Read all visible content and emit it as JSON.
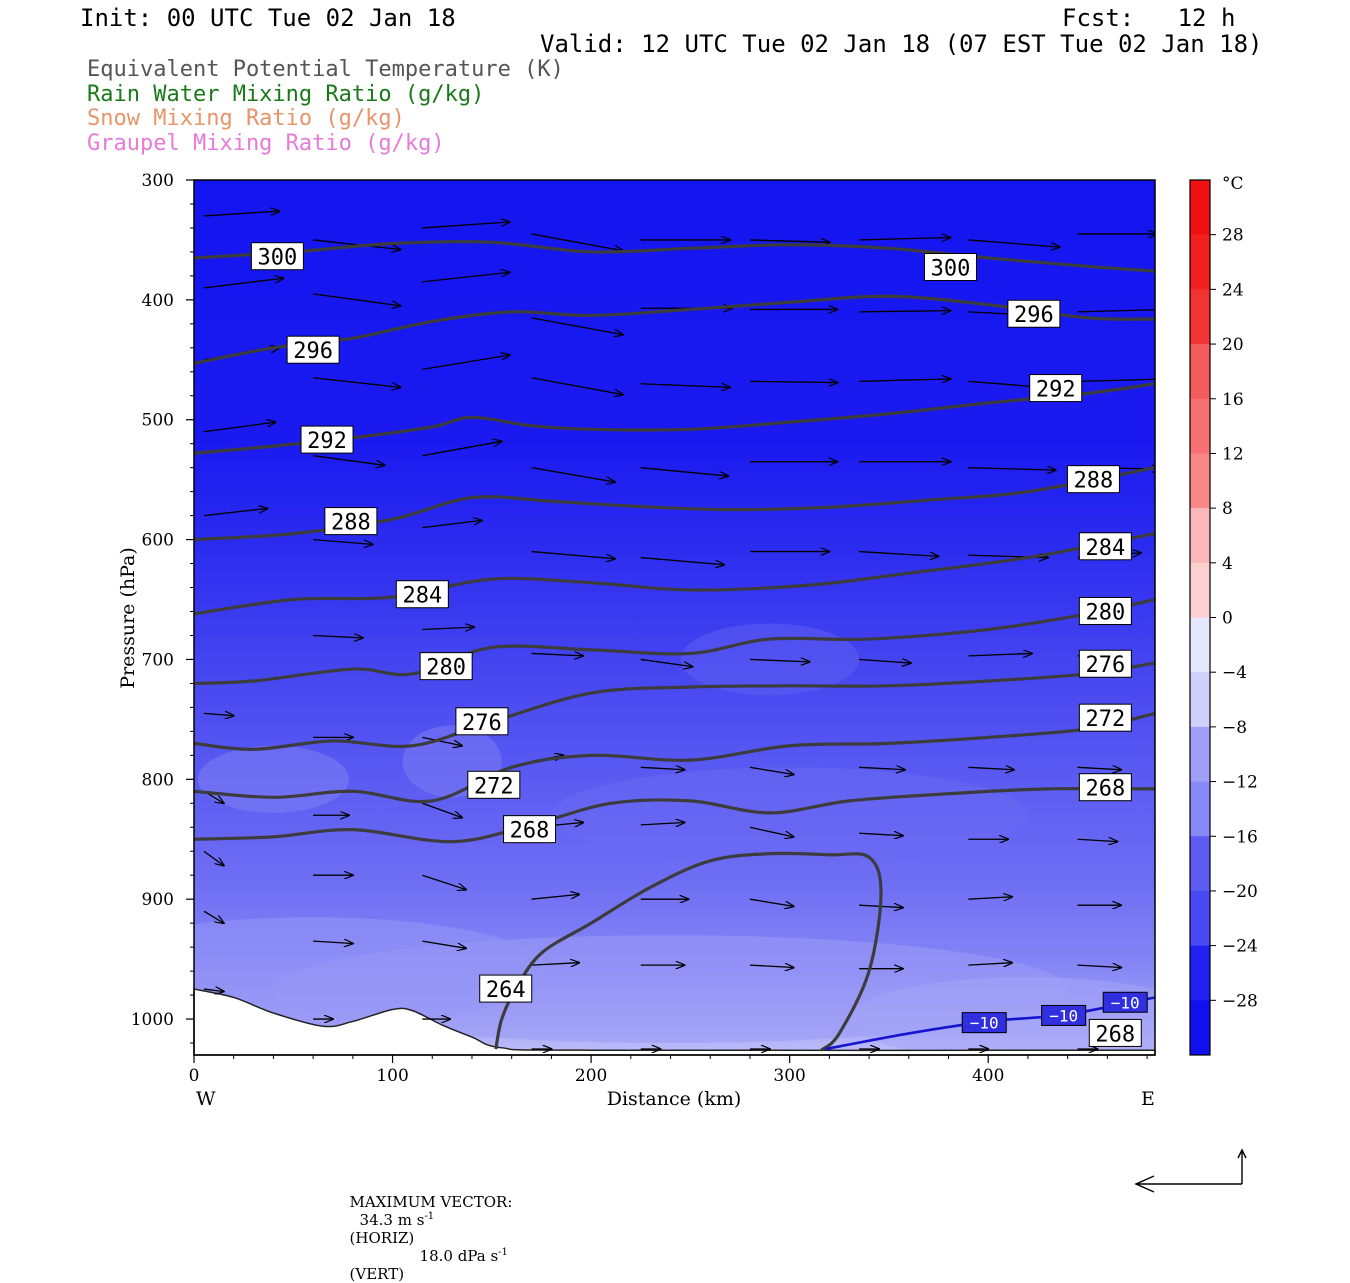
{
  "header": {
    "init": "Init: 00 UTC Tue 02 Jan 18",
    "fcst": "Fcst:   12 h",
    "valid": "Valid: 12 UTC Tue 02 Jan 18 (07 EST Tue 02 Jan 18)"
  },
  "legend": [
    {
      "text": "Equivalent Potential Temperature (K)",
      "color": "#555555"
    },
    {
      "text": "Rain Water Mixing Ratio (g/kg)",
      "color": "#1a7a1a"
    },
    {
      "text": "Snow Mixing Ratio (g/kg)",
      "color": "#e8946a"
    },
    {
      "text": "Graupel Mixing Ratio (g/kg)",
      "color": "#e87ad8"
    }
  ],
  "chart_data": {
    "type": "cross-section",
    "xlabel": "Distance (km)",
    "ylabel": "Pressure (hPa)",
    "x_ticks": [
      0,
      100,
      200,
      300,
      400
    ],
    "xlim": [
      0,
      484
    ],
    "y_ticks": [
      300,
      400,
      500,
      600,
      700,
      800,
      900,
      1000
    ],
    "ylim": [
      1030,
      300
    ],
    "left_end_label": "W",
    "right_end_label": "E",
    "colorbar": {
      "unit": "°C",
      "tick_labels": [
        "28",
        "24",
        "20",
        "16",
        "12",
        "8",
        "4",
        "0",
        "−4",
        "−8",
        "−12",
        "−16",
        "−20",
        "−24",
        "−28"
      ],
      "tick_values": [
        28,
        24,
        20,
        16,
        12,
        8,
        4,
        0,
        -4,
        -8,
        -12,
        -16,
        -20,
        -24,
        -28
      ],
      "range": [
        -32,
        32
      ]
    },
    "theta_e_contours": [
      {
        "value": 300,
        "labels": [
          {
            "text": "300",
            "x": 42,
            "p": 364
          },
          {
            "text": "300",
            "x": 381,
            "p": 373
          }
        ],
        "points": [
          [
            0,
            365
          ],
          [
            50,
            360
          ],
          [
            100,
            353
          ],
          [
            150,
            352
          ],
          [
            200,
            360
          ],
          [
            250,
            357
          ],
          [
            300,
            354
          ],
          [
            350,
            357
          ],
          [
            400,
            365
          ],
          [
            450,
            372
          ],
          [
            484,
            376
          ]
        ]
      },
      {
        "value": 296,
        "labels": [
          {
            "text": "296",
            "x": 60,
            "p": 442
          },
          {
            "text": "296",
            "x": 423,
            "p": 412
          }
        ],
        "points": [
          [
            0,
            453
          ],
          [
            40,
            440
          ],
          [
            80,
            432
          ],
          [
            120,
            418
          ],
          [
            160,
            410
          ],
          [
            200,
            413
          ],
          [
            250,
            408
          ],
          [
            300,
            402
          ],
          [
            350,
            397
          ],
          [
            400,
            404
          ],
          [
            450,
            415
          ],
          [
            484,
            416
          ]
        ]
      },
      {
        "value": 292,
        "labels": [
          {
            "text": "292",
            "x": 67,
            "p": 517
          },
          {
            "text": "292",
            "x": 434,
            "p": 474
          }
        ],
        "points": [
          [
            0,
            528
          ],
          [
            40,
            522
          ],
          [
            80,
            515
          ],
          [
            120,
            506
          ],
          [
            140,
            498
          ],
          [
            170,
            505
          ],
          [
            200,
            508
          ],
          [
            250,
            508
          ],
          [
            300,
            502
          ],
          [
            350,
            495
          ],
          [
            400,
            486
          ],
          [
            450,
            478
          ],
          [
            484,
            470
          ]
        ]
      },
      {
        "value": 288,
        "labels": [
          {
            "text": "288",
            "x": 79,
            "p": 585
          },
          {
            "text": "288",
            "x": 453,
            "p": 550
          }
        ],
        "points": [
          [
            0,
            600
          ],
          [
            50,
            595
          ],
          [
            100,
            583
          ],
          [
            140,
            565
          ],
          [
            180,
            568
          ],
          [
            220,
            572
          ],
          [
            270,
            575
          ],
          [
            320,
            573
          ],
          [
            370,
            567
          ],
          [
            420,
            560
          ],
          [
            484,
            540
          ]
        ]
      },
      {
        "value": 284,
        "labels": [
          {
            "text": "284",
            "x": 115,
            "p": 646
          },
          {
            "text": "284",
            "x": 459,
            "p": 606
          }
        ],
        "points": [
          [
            0,
            662
          ],
          [
            50,
            650
          ],
          [
            100,
            648
          ],
          [
            150,
            633
          ],
          [
            200,
            636
          ],
          [
            250,
            642
          ],
          [
            310,
            638
          ],
          [
            360,
            628
          ],
          [
            420,
            615
          ],
          [
            484,
            595
          ]
        ]
      },
      {
        "value": 280,
        "labels": [
          {
            "text": "280",
            "x": 127,
            "p": 706
          },
          {
            "text": "280",
            "x": 459,
            "p": 660
          }
        ],
        "points": [
          [
            0,
            720
          ],
          [
            30,
            718
          ],
          [
            80,
            708
          ],
          [
            110,
            712
          ],
          [
            150,
            690
          ],
          [
            200,
            692
          ],
          [
            250,
            695
          ],
          [
            290,
            683
          ],
          [
            340,
            683
          ],
          [
            400,
            675
          ],
          [
            450,
            662
          ],
          [
            484,
            650
          ]
        ]
      },
      {
        "value": 276,
        "labels": [
          {
            "text": "276",
            "x": 145,
            "p": 752
          },
          {
            "text": "276",
            "x": 459,
            "p": 704
          }
        ],
        "points": [
          [
            0,
            770
          ],
          [
            30,
            775
          ],
          [
            70,
            768
          ],
          [
            110,
            772
          ],
          [
            150,
            752
          ],
          [
            200,
            728
          ],
          [
            250,
            723
          ],
          [
            300,
            722
          ],
          [
            350,
            722
          ],
          [
            400,
            718
          ],
          [
            450,
            712
          ],
          [
            484,
            703
          ]
        ]
      },
      {
        "value": 272,
        "labels": [
          {
            "text": "272",
            "x": 151,
            "p": 805
          },
          {
            "text": "272",
            "x": 459,
            "p": 749
          }
        ],
        "points": [
          [
            0,
            810
          ],
          [
            40,
            815
          ],
          [
            80,
            810
          ],
          [
            120,
            818
          ],
          [
            160,
            790
          ],
          [
            200,
            780
          ],
          [
            250,
            784
          ],
          [
            300,
            772
          ],
          [
            350,
            770
          ],
          [
            400,
            765
          ],
          [
            450,
            758
          ],
          [
            484,
            745
          ]
        ]
      },
      {
        "value": 268,
        "labels": [
          {
            "text": "268",
            "x": 169,
            "p": 842
          },
          {
            "text": "268",
            "x": 459,
            "p": 807
          }
        ],
        "points": [
          [
            0,
            850
          ],
          [
            40,
            848
          ],
          [
            80,
            842
          ],
          [
            130,
            852
          ],
          [
            170,
            838
          ],
          [
            210,
            820
          ],
          [
            250,
            818
          ],
          [
            290,
            828
          ],
          [
            330,
            818
          ],
          [
            380,
            812
          ],
          [
            430,
            808
          ],
          [
            484,
            808
          ]
        ]
      },
      {
        "value": 264,
        "labels": [
          {
            "text": "264",
            "x": 157,
            "p": 975
          }
        ],
        "points": [
          [
            152,
            1025
          ],
          [
            155,
            1000
          ],
          [
            162,
            975
          ],
          [
            175,
            945
          ],
          [
            200,
            920
          ],
          [
            230,
            890
          ],
          [
            260,
            868
          ],
          [
            290,
            862
          ],
          [
            320,
            863
          ],
          [
            340,
            865
          ],
          [
            346,
            895
          ],
          [
            340,
            960
          ],
          [
            325,
            1012
          ],
          [
            316,
            1026
          ]
        ]
      }
    ],
    "isotherm_minus10": {
      "label": "−10",
      "points": [
        [
          318,
          1025
        ],
        [
          360,
          1012
        ],
        [
          400,
          1002
        ],
        [
          440,
          996
        ],
        [
          484,
          982
        ]
      ],
      "labels": [
        {
          "text": "−10",
          "x": 398,
          "p": 1003
        },
        {
          "text": "−10",
          "x": 438,
          "p": 997
        },
        {
          "text": "−10",
          "x": 469,
          "p": 986
        }
      ]
    },
    "bottom_label": {
      "text": "268",
      "x": 464,
      "p": 1012
    },
    "footer": {
      "max_vector": "MAXIMUM VECTOR:",
      "horiz": "34.3 m s",
      "horiz_unit": "(HORIZ)",
      "vert": "18.0 dPa s",
      "vert_unit": "(VERT)",
      "exp": "-1"
    }
  }
}
